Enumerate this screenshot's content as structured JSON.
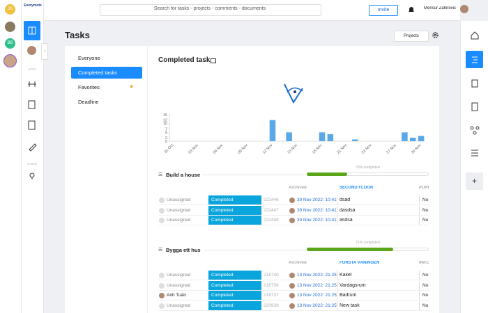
{
  "header": {
    "logo": "Everymote",
    "search": "Search for tasks - projects - comments - documents",
    "invite": "Invite",
    "user": "Mensur Zahirovic"
  },
  "rail": {
    "avatar_initials": [
      "JS",
      "BB"
    ],
    "sections": [
      "APPS",
      "OTHER"
    ]
  },
  "page": {
    "title": "Tasks",
    "projects_button": "Projects"
  },
  "menu": {
    "items": [
      "Everyone",
      "Completed tasks",
      "Favorites",
      "Deadline"
    ],
    "active": 1
  },
  "content": {
    "heading": "Completed task"
  },
  "chart_data": {
    "type": "bar",
    "color": "#5aa8e8",
    "categories": [
      "31 Oct",
      null,
      null,
      "03 Nov",
      null,
      null,
      "06 Nov",
      null,
      null,
      "09 Nov",
      null,
      null,
      "12 Nov",
      null,
      null,
      "15 Nov",
      null,
      null,
      "18 Nov",
      null,
      null,
      "21 Nov",
      null,
      null,
      "24 Nov",
      null,
      null,
      "27 Nov",
      null,
      null,
      "30 Nov"
    ],
    "values": [
      0,
      0,
      0,
      0,
      0,
      0,
      0,
      0,
      0,
      0,
      0,
      0,
      12,
      0,
      5,
      0,
      0,
      0,
      5,
      4,
      0,
      0,
      1,
      0,
      0,
      0,
      0,
      0,
      5,
      2,
      3
    ],
    "ylim": [
      0,
      15
    ],
    "yticks": [
      0,
      2,
      5,
      7,
      10,
      12,
      15
    ]
  },
  "groups": [
    {
      "title": "Build a house",
      "progress": {
        "value": 33,
        "label": "33% completed"
      },
      "columns": [
        "Archived",
        "SECOND FLOOR",
        "PURI"
      ],
      "rows": [
        {
          "assignee": "Unassigned",
          "status": "Completed",
          "id": "222446",
          "date": "30 Nov 2022: 10:41",
          "name": "dsad",
          "flag": "No"
        },
        {
          "assignee": "Unassigned",
          "status": "Completed",
          "id": "222447",
          "date": "30 Nov 2022: 10:41",
          "name": "dasdsa",
          "flag": "No"
        },
        {
          "assignee": "Unassigned",
          "status": "Completed",
          "id": "222448",
          "date": "30 Nov 2022: 10:41",
          "name": "asdsa",
          "flag": "No"
        }
      ]
    },
    {
      "title": "Bygga ett hus",
      "progress": {
        "value": 71,
        "label": "71% completed"
      },
      "columns": [
        "Archived",
        "FÖRSTA VÅNINGEN",
        "INKÖ"
      ],
      "rows": [
        {
          "assignee": "Unassigned",
          "status": "Completed",
          "id": "218740",
          "date": "13 Nov 2022: 21:25",
          "name": "Kakel",
          "flag": "No"
        },
        {
          "assignee": "Unassigned",
          "status": "Completed",
          "id": "218736",
          "date": "13 Nov 2022: 21:25",
          "name": "Vardagsrum",
          "flag": "No"
        },
        {
          "assignee": "Anh Tuấn",
          "status": "Completed",
          "id": "218737",
          "date": "13 Nov 2022: 21:25",
          "name": "Badrum",
          "flag": "No"
        },
        {
          "assignee": "Unassigned",
          "status": "Completed",
          "id": "220939",
          "date": "13 Nov 2022: 21:25",
          "name": "New task",
          "flag": "No"
        }
      ]
    }
  ]
}
